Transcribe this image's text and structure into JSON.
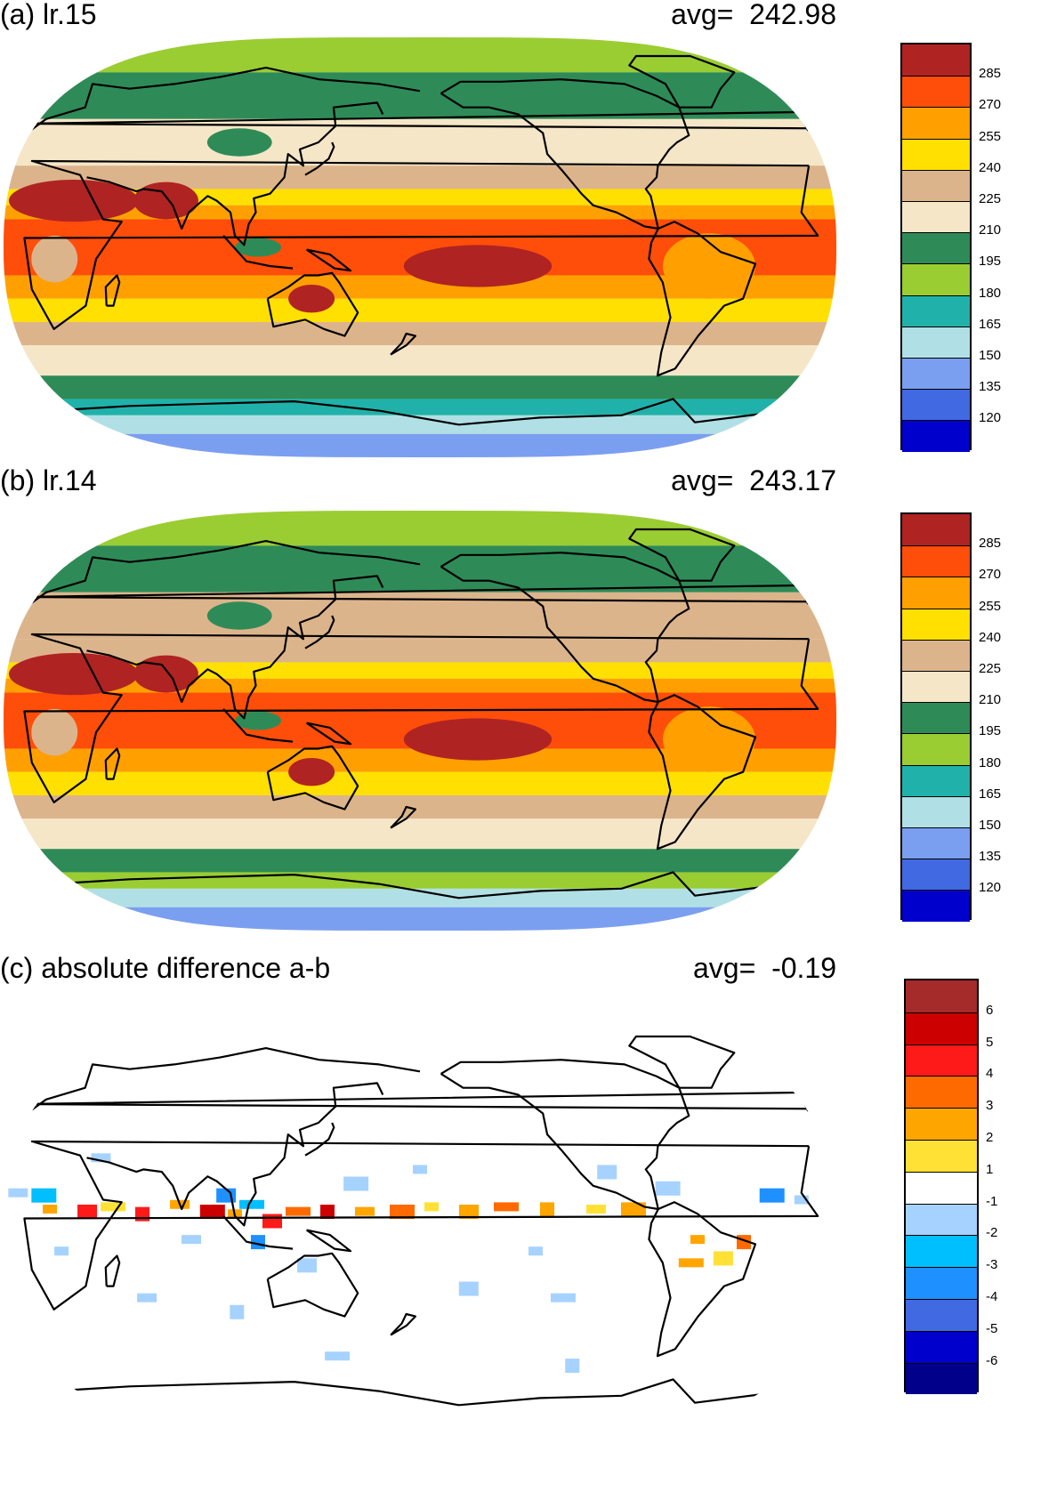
{
  "panels": [
    {
      "id": "a",
      "title": "(a) lr.15",
      "avg_label": "avg=",
      "avg_value": "242.98",
      "colorbar": {
        "labels": [
          "285",
          "270",
          "255",
          "240",
          "225",
          "210",
          "195",
          "180",
          "165",
          "150",
          "135",
          "120"
        ],
        "colors": [
          "#b02323",
          "#ff4d0a",
          "#ffa000",
          "#ffe000",
          "#dcb48c",
          "#f5e6c8",
          "#2e8b57",
          "#9acd32",
          "#20b2aa",
          "#b0e0e6",
          "#7b9ff0",
          "#4169e1",
          "#0000cd"
        ]
      },
      "bands": [
        {
          "lat": [
            75,
            90
          ],
          "color": "#9acd32"
        },
        {
          "lat": [
            55,
            75
          ],
          "color": "#2e8b57"
        },
        {
          "lat": [
            35,
            55
          ],
          "color": "#f5e6c8"
        },
        {
          "lat": [
            25,
            35
          ],
          "color": "#dcb48c"
        },
        {
          "lat": [
            18,
            25
          ],
          "color": "#ffe000"
        },
        {
          "lat": [
            12,
            18
          ],
          "color": "#ffa000"
        },
        {
          "lat": [
            -12,
            12
          ],
          "color": "#ff4d0a"
        },
        {
          "lat": [
            -22,
            -12
          ],
          "color": "#ffa000"
        },
        {
          "lat": [
            -32,
            -22
          ],
          "color": "#ffe000"
        },
        {
          "lat": [
            -42,
            -32
          ],
          "color": "#dcb48c"
        },
        {
          "lat": [
            -55,
            -42
          ],
          "color": "#f5e6c8"
        },
        {
          "lat": [
            -65,
            -55
          ],
          "color": "#2e8b57"
        },
        {
          "lat": [
            -72,
            -65
          ],
          "color": "#20b2aa"
        },
        {
          "lat": [
            -80,
            -72
          ],
          "color": "#b0e0e6"
        },
        {
          "lat": [
            -90,
            -80
          ],
          "color": "#7b9ff0"
        }
      ]
    },
    {
      "id": "b",
      "title": "(b) lr.14",
      "avg_label": "avg=",
      "avg_value": "243.17",
      "colorbar": {
        "labels": [
          "285",
          "270",
          "255",
          "240",
          "225",
          "210",
          "195",
          "180",
          "165",
          "150",
          "135",
          "120"
        ],
        "colors": [
          "#b02323",
          "#ff4d0a",
          "#ffa000",
          "#ffe000",
          "#dcb48c",
          "#f5e6c8",
          "#2e8b57",
          "#9acd32",
          "#20b2aa",
          "#b0e0e6",
          "#7b9ff0",
          "#4169e1",
          "#0000cd"
        ]
      },
      "bands": [
        {
          "lat": [
            75,
            90
          ],
          "color": "#9acd32"
        },
        {
          "lat": [
            55,
            75
          ],
          "color": "#2e8b57"
        },
        {
          "lat": [
            35,
            55
          ],
          "color": "#dcb48c"
        },
        {
          "lat": [
            25,
            35
          ],
          "color": "#dcb48c"
        },
        {
          "lat": [
            18,
            25
          ],
          "color": "#ffe000"
        },
        {
          "lat": [
            12,
            18
          ],
          "color": "#ffa000"
        },
        {
          "lat": [
            -12,
            12
          ],
          "color": "#ff4d0a"
        },
        {
          "lat": [
            -22,
            -12
          ],
          "color": "#ffa000"
        },
        {
          "lat": [
            -32,
            -22
          ],
          "color": "#ffe000"
        },
        {
          "lat": [
            -42,
            -32
          ],
          "color": "#dcb48c"
        },
        {
          "lat": [
            -55,
            -42
          ],
          "color": "#f5e6c8"
        },
        {
          "lat": [
            -65,
            -55
          ],
          "color": "#2e8b57"
        },
        {
          "lat": [
            -72,
            -65
          ],
          "color": "#9acd32"
        },
        {
          "lat": [
            -80,
            -72
          ],
          "color": "#b0e0e6"
        },
        {
          "lat": [
            -90,
            -80
          ],
          "color": "#7b9ff0"
        }
      ]
    },
    {
      "id": "c",
      "title": "(c) absolute difference a-b",
      "avg_label": "avg=",
      "avg_value": "-0.19",
      "colorbar": {
        "labels": [
          "6",
          "5",
          "4",
          "3",
          "2",
          "1",
          "-1",
          "-2",
          "-3",
          "-4",
          "-5",
          "-6"
        ],
        "colors": [
          "#a52a2a",
          "#cd0000",
          "#ff1a1a",
          "#ff6a00",
          "#ffa500",
          "#ffe135",
          "#ffffff",
          "#a6d2ff",
          "#00bfff",
          "#1e90ff",
          "#4169e1",
          "#0000cd",
          "#00008b"
        ]
      },
      "bands": []
    }
  ],
  "warm_blobs": [
    {
      "lon": 30,
      "lat": 20,
      "rlon": 28,
      "rlat": 9,
      "color": "#b02323"
    },
    {
      "lon": 70,
      "lat": 20,
      "rlon": 14,
      "rlat": 8,
      "color": "#b02323"
    },
    {
      "lon": 205,
      "lat": -8,
      "rlon": 32,
      "rlat": 9,
      "color": "#b02323"
    },
    {
      "lon": 133,
      "lat": -22,
      "rlon": 10,
      "rlat": 6,
      "color": "#b02323"
    },
    {
      "lon": 305,
      "lat": -8,
      "rlon": 20,
      "rlat": 14,
      "color": "#ffa000"
    },
    {
      "lon": 22,
      "lat": -5,
      "rlon": 10,
      "rlat": 10,
      "color": "#dcb48c"
    },
    {
      "lon": 100,
      "lat": 45,
      "rlon": 14,
      "rlat": 6,
      "color": "#2e8b57"
    },
    {
      "lon": 110,
      "lat": 0,
      "rlon": 10,
      "rlat": 4,
      "color": "#2e8b57"
    }
  ],
  "diff_dots": [
    {
      "lon": 20,
      "lat": 8,
      "color": "#ffa500"
    },
    {
      "lon": 35,
      "lat": 8,
      "color": "#ff1a1a"
    },
    {
      "lon": 45,
      "lat": 9,
      "color": "#ffe135"
    },
    {
      "lon": 60,
      "lat": 7,
      "color": "#ff1a1a"
    },
    {
      "lon": 75,
      "lat": 10,
      "color": "#ffa500"
    },
    {
      "lon": 88,
      "lat": 8,
      "color": "#cd0000"
    },
    {
      "lon": 100,
      "lat": 6,
      "color": "#ffa500"
    },
    {
      "lon": 115,
      "lat": 4,
      "color": "#ff1a1a"
    },
    {
      "lon": 125,
      "lat": 7,
      "color": "#ff6a00"
    },
    {
      "lon": 140,
      "lat": 8,
      "color": "#cd0000"
    },
    {
      "lon": 155,
      "lat": 7,
      "color": "#ffa500"
    },
    {
      "lon": 170,
      "lat": 8,
      "color": "#ff6a00"
    },
    {
      "lon": 185,
      "lat": 9,
      "color": "#ffe135"
    },
    {
      "lon": 200,
      "lat": 8,
      "color": "#ffa500"
    },
    {
      "lon": 215,
      "lat": 9,
      "color": "#ff6a00"
    },
    {
      "lon": 235,
      "lat": 9,
      "color": "#ffa500"
    },
    {
      "lon": 255,
      "lat": 8,
      "color": "#ffe135"
    },
    {
      "lon": 270,
      "lat": 9,
      "color": "#ffa500"
    },
    {
      "lon": 300,
      "lat": -5,
      "color": "#ffa500"
    },
    {
      "lon": 310,
      "lat": -12,
      "color": "#ffe135"
    },
    {
      "lon": 295,
      "lat": -15,
      "color": "#ffa500"
    },
    {
      "lon": 320,
      "lat": -5,
      "color": "#ff6a00"
    },
    {
      "lon": 5,
      "lat": 15,
      "color": "#a6d2ff"
    },
    {
      "lon": 15,
      "lat": 15,
      "color": "#00bfff"
    },
    {
      "lon": 25,
      "lat": -10,
      "color": "#a6d2ff"
    },
    {
      "lon": 95,
      "lat": 15,
      "color": "#1e90ff"
    },
    {
      "lon": 105,
      "lat": 10,
      "color": "#00bfff"
    },
    {
      "lon": 110,
      "lat": -5,
      "color": "#1e90ff"
    },
    {
      "lon": 80,
      "lat": -5,
      "color": "#a6d2ff"
    },
    {
      "lon": 150,
      "lat": 20,
      "color": "#a6d2ff"
    },
    {
      "lon": 180,
      "lat": 25,
      "color": "#a6d2ff"
    },
    {
      "lon": 200,
      "lat": -25,
      "color": "#a6d2ff"
    },
    {
      "lon": 240,
      "lat": -30,
      "color": "#a6d2ff"
    },
    {
      "lon": 100,
      "lat": -35,
      "color": "#a6d2ff"
    },
    {
      "lon": 60,
      "lat": -30,
      "color": "#a6d2ff"
    },
    {
      "lon": 330,
      "lat": 15,
      "color": "#1e90ff"
    },
    {
      "lon": 345,
      "lat": 12,
      "color": "#a6d2ff"
    },
    {
      "lon": 260,
      "lat": 25,
      "color": "#a6d2ff"
    },
    {
      "lon": 140,
      "lat": -55,
      "color": "#a6d2ff"
    },
    {
      "lon": 250,
      "lat": -58,
      "color": "#a6d2ff"
    },
    {
      "lon": 40,
      "lat": 30,
      "color": "#a6d2ff"
    },
    {
      "lon": 285,
      "lat": 18,
      "color": "#a6d2ff"
    },
    {
      "lon": 230,
      "lat": -10,
      "color": "#a6d2ff"
    },
    {
      "lon": 130,
      "lat": -15,
      "color": "#a6d2ff"
    }
  ]
}
